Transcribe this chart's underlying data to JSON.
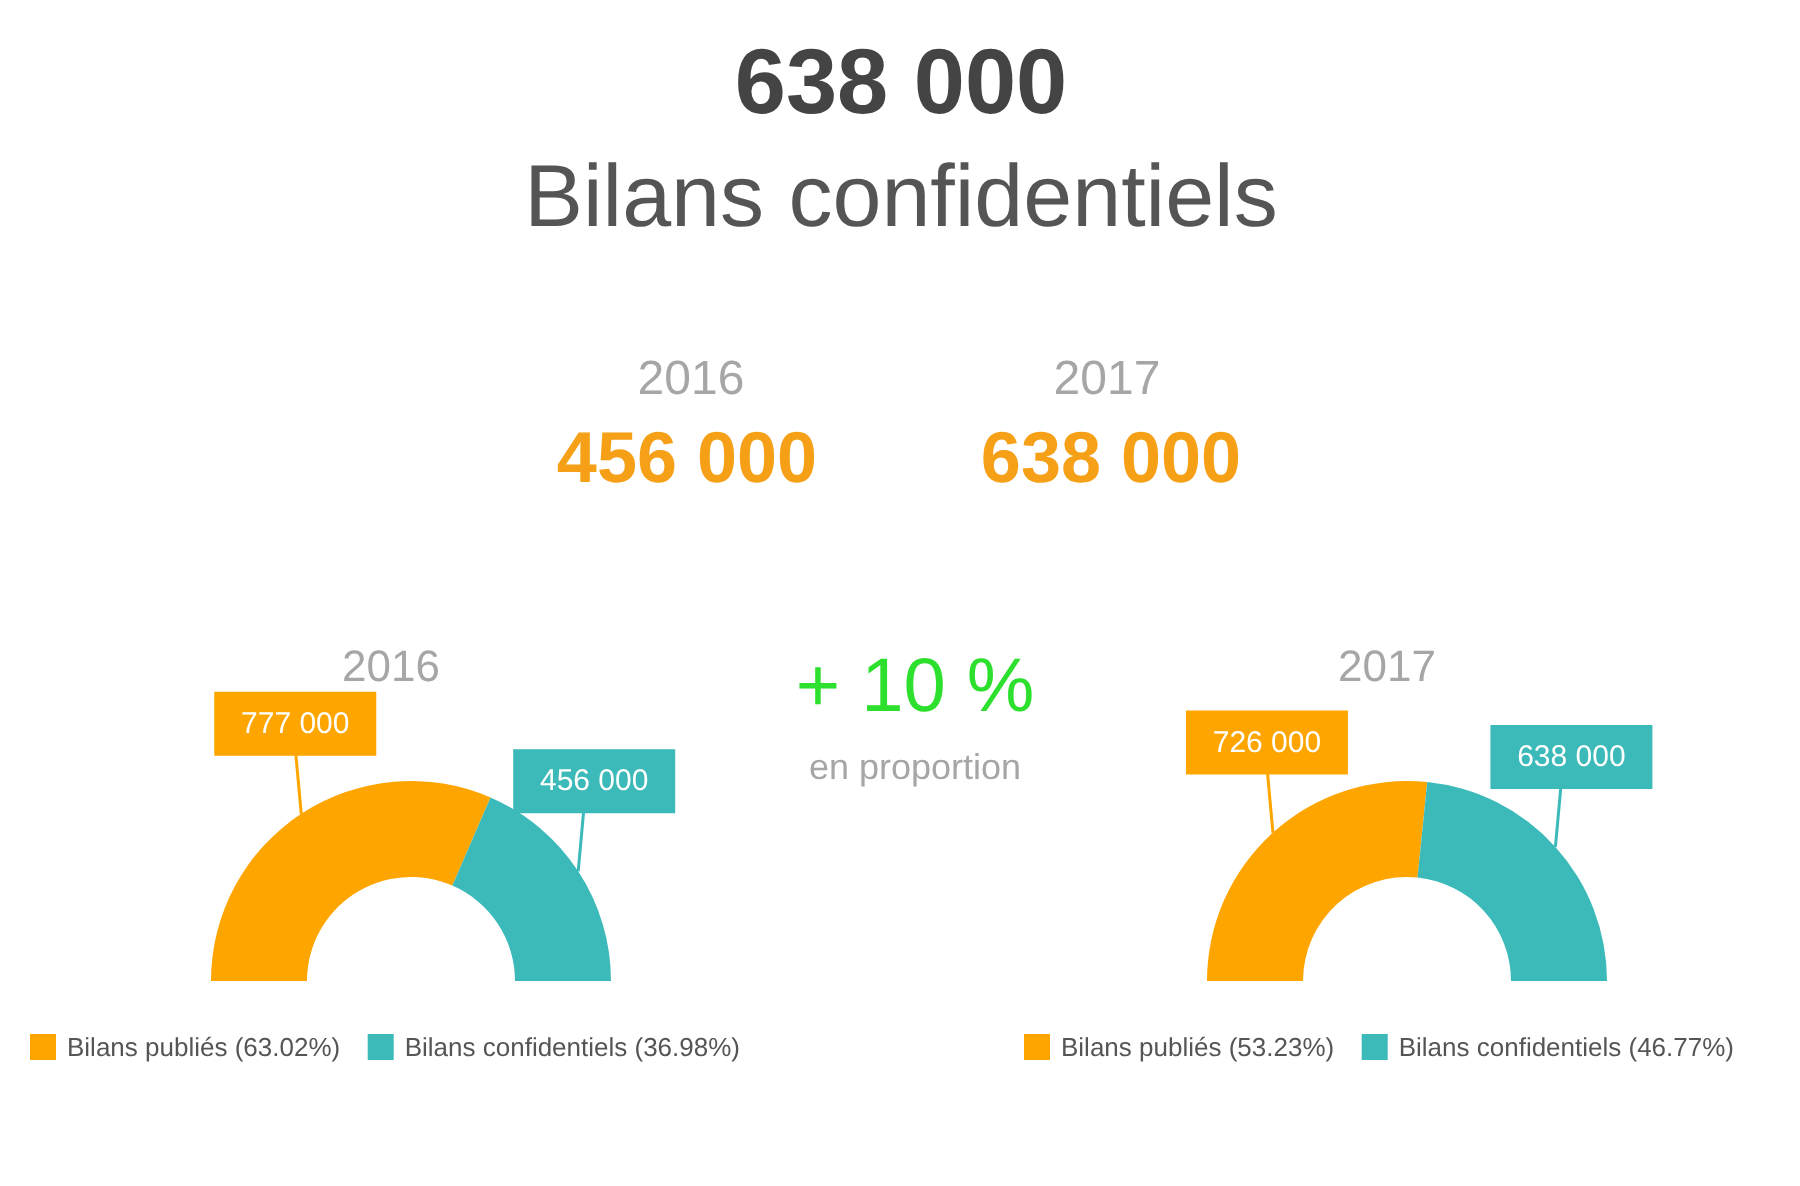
{
  "chart_data": [
    {
      "type": "other",
      "title": "638 000",
      "subtitle": "Bilans confidentiels",
      "annotations": [
        "2016",
        "456 000",
        "2017",
        "638 000",
        "+ 10 %",
        "en proportion"
      ]
    },
    {
      "type": "donut",
      "title": "2016",
      "categories": [
        "Bilans publiés (63.02%)",
        "Bilans confidentiels (36.98%)"
      ],
      "values": [
        777000,
        456000
      ],
      "colors": [
        "#fea500",
        "#3cb9b9"
      ],
      "value_labels": [
        "777 000",
        "456 000"
      ],
      "legend": "bottom"
    },
    {
      "type": "donut",
      "title": "2017",
      "categories": [
        "Bilans publiés (53.23%)",
        "Bilans confidentiels (46.77%)"
      ],
      "values": [
        726000,
        638000
      ],
      "colors": [
        "#fea500",
        "#3cb9b9"
      ],
      "value_labels": [
        "726 000",
        "638 000"
      ],
      "legend": "bottom"
    }
  ]
}
